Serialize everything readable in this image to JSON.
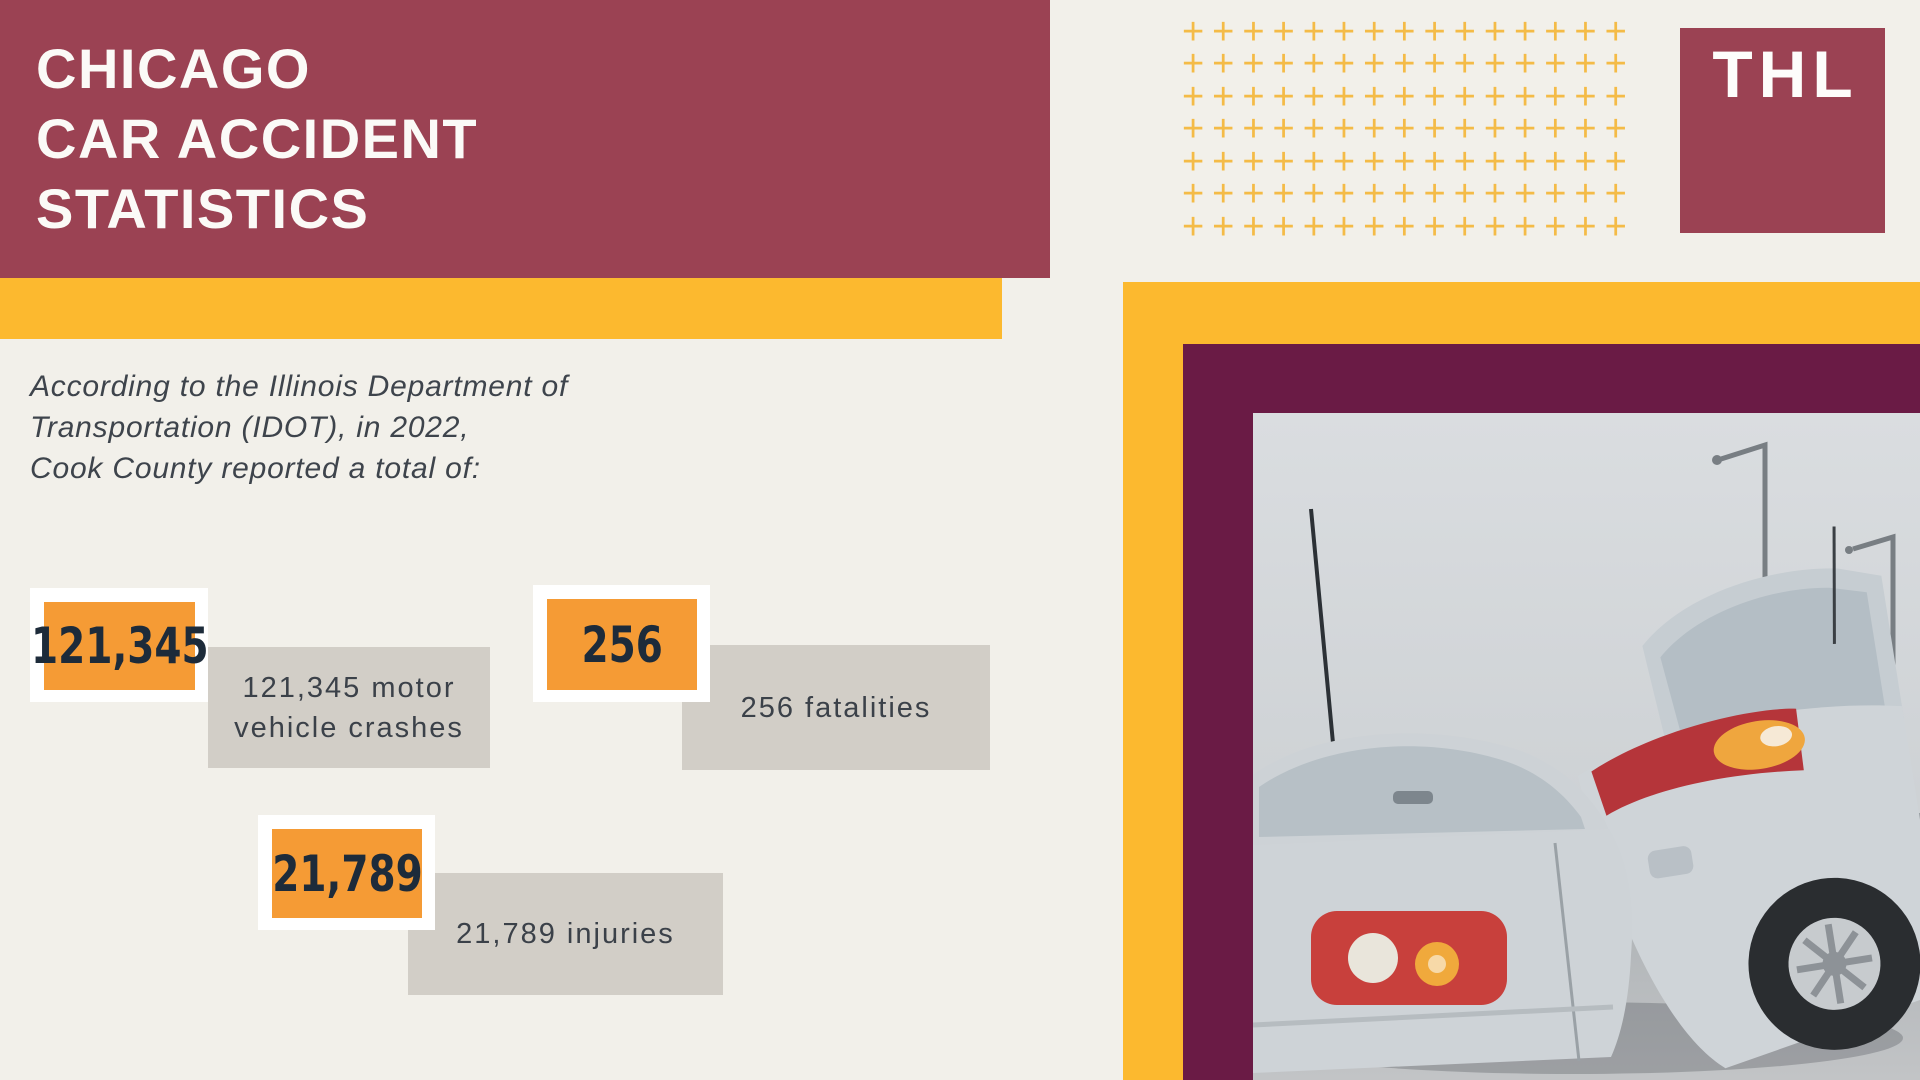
{
  "title": {
    "lines": [
      "CHICAGO",
      "CAR ACCIDENT",
      "STATISTICS"
    ]
  },
  "logo": {
    "text": "THL"
  },
  "intro": {
    "lines": [
      "According to the Illinois Department of",
      "Transportation (IDOT), in 2022,",
      "Cook County reported a total of:"
    ]
  },
  "stats": [
    {
      "value": "121,345",
      "label": "121,345 motor vehicle crashes"
    },
    {
      "value": "256",
      "label": "256 fatalities"
    },
    {
      "value": "21,789",
      "label": "21,789 injuries"
    }
  ],
  "decor": {
    "plus_rows": 7,
    "plus_cols": 15,
    "plus_char": "+"
  },
  "colors": {
    "background": "#f2f0ea",
    "maroon": "#9b4253",
    "yellow": "#fcb92f",
    "plum": "#6a1b45",
    "orange": "#f59b35",
    "navy_number": "#1d2b3a",
    "gray_box": "#d2cec7",
    "text_dark": "#3b4149",
    "plus_amber": "#f4bb47"
  }
}
